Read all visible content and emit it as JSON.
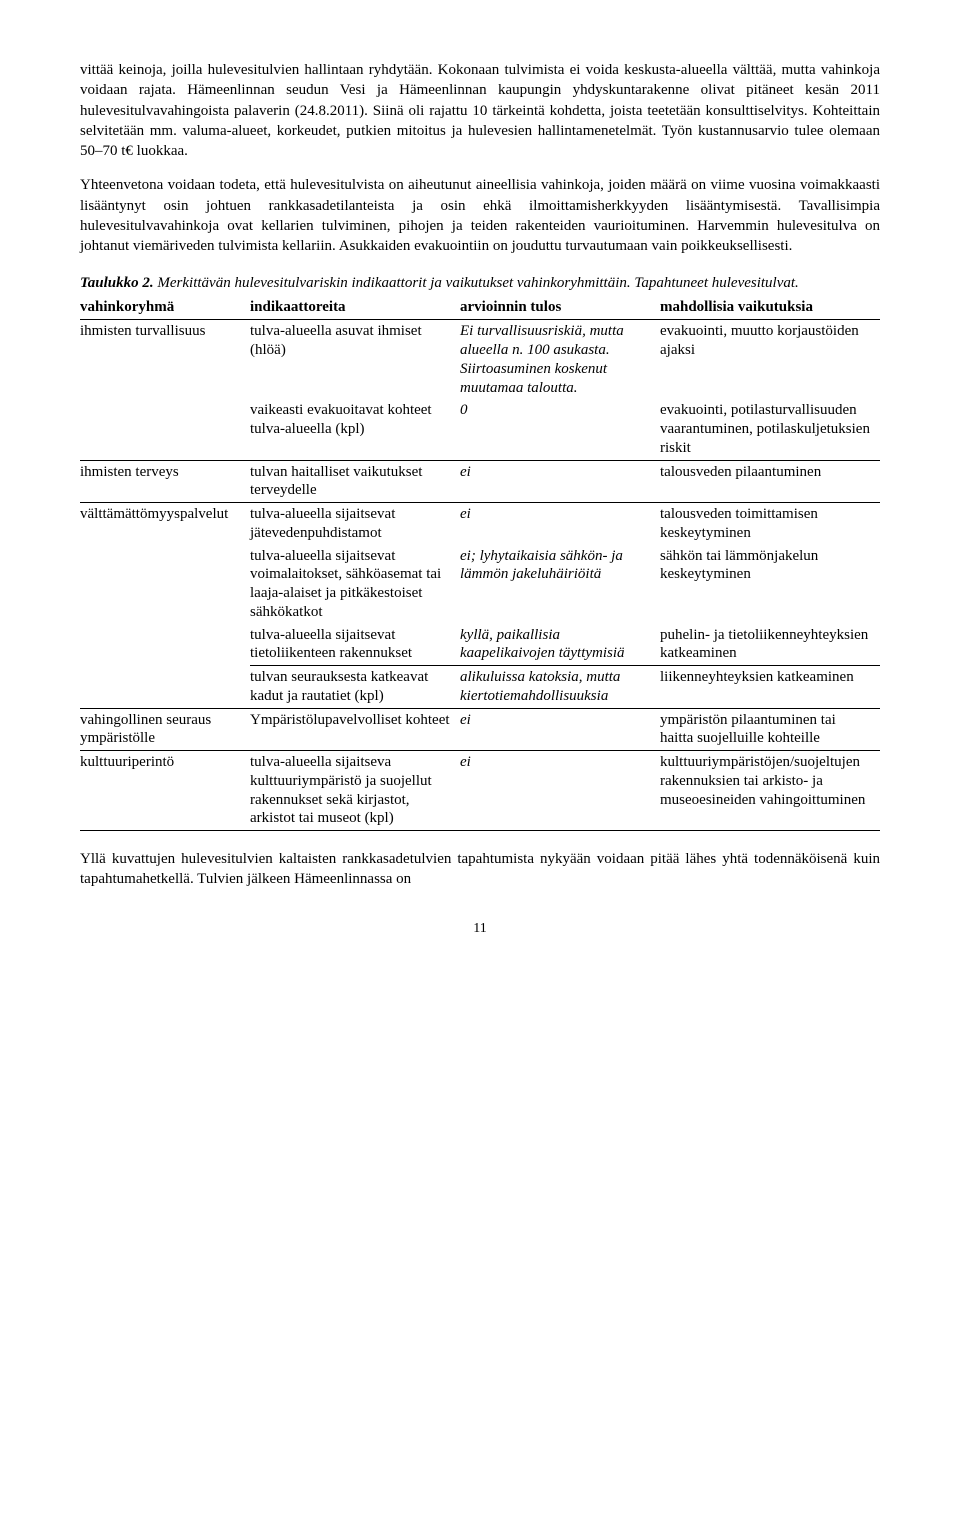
{
  "paragraphs": {
    "p1": "vittää keinoja, joilla hulevesitulvien hallintaan ryhdytään. Kokonaan tulvimista ei voida keskusta-alueella välttää, mutta vahinkoja voidaan rajata. Hämeenlinnan seudun Vesi ja Hämeenlinnan kaupungin yhdyskuntarakenne olivat pitäneet kesän 2011 hulevesitulvavahingoista palaverin (24.8.2011). Siinä oli rajattu 10 tärkeintä kohdetta, joista teetetään konsulttiselvitys. Kohteittain selvitetään mm. valuma-alueet, korkeudet, putkien mitoitus ja hulevesien hallintamenetelmät. Työn kustannusarvio tulee olemaan 50–70 t€ luokkaa.",
    "p2": "Yhteenvetona voidaan todeta, että hulevesitulvista on aiheutunut aineellisia vahinkoja, joiden määrä on viime vuosina voimakkaasti lisääntynyt osin johtuen rankkasadetilanteista ja osin ehkä ilmoittamisherkkyyden lisääntymisestä. Tavallisimpia hulevesitulvavahinkoja ovat kellarien tulviminen, pihojen ja teiden rakenteiden vaurioituminen. Harvemmin hulevesitulva on johtanut viemäriveden tulvimista kellariin. Asukkaiden evakuointiin on jouduttu turvautumaan vain poikkeuksellisesti.",
    "p3": "Yllä kuvatuttujen hulevesitulvien kaltaisten rankkasadetuIvien tapahtumista nykyään voidaan pitää lähes yhtä todennäköisenä kuin tapahtumahetkellä. Tulvien jälkeen Hämeenlinnassa on"
  },
  "p3_real": "Yllä kuvattujen hulevesitulvien kaltaisten rankkasadetulvien tapahtumista nykyään voidaan pitää lähes yhtä todennäköisenä kuin tapahtumahetkellä. Tulvien jälkeen Hämeenlinnassa on",
  "caption": {
    "bold": "Taulukko 2.",
    "rest": "Merkittävän hulevesitulvariskin indikaattorit ja vaikutukset vahinkoryhmittäin. Tapahtuneet hulevesitulvat."
  },
  "table": {
    "headers": [
      "vahinkoryhmä",
      "indikaattoreita",
      "arvioinnin tulos",
      "mahdollisia vaikutuksia"
    ],
    "rows": [
      {
        "c1": "ihmisten turvallisuus",
        "c2": "tulva-alueella asuvat ihmiset (hlöä)",
        "c3": "Ei turvallisuusriskiä, mutta alueella n. 100 asukasta. Siirtoasuminen koskenut muutamaa taloutta.",
        "c4": "evakuointi,\nmuutto korjaustöiden ajaksi"
      },
      {
        "c1": "",
        "c2": "vaikeasti evakuoitavat kohteet tulva-alueella (kpl)",
        "c3": "0",
        "c4": "evakuointi, potilasturvallisuuden vaarantuminen, potilaskuljetuksien riskit"
      },
      {
        "c1": "ihmisten terveys",
        "c2": "tulvan haitalliset vaikutukset terveydelle",
        "c3": "ei",
        "c4": "talousveden pilaantuminen"
      },
      {
        "c1": "välttämättömyyspalvelut",
        "c2": "tulva-alueella sijaitsevat jätevedenpuhdistamot",
        "c3": "ei",
        "c4": "talousveden toimittamisen keskeytyminen"
      },
      {
        "c1": "",
        "c2": "tulva-alueella sijaitsevat voimalaitokset, sähköasemat tai laaja-alaiset ja pitkäkestoiset sähkökatkot",
        "c3": "ei; lyhytaikaisia sähkön- ja lämmön jakeluhäiriöitä",
        "c4": "sähkön tai lämmönjakelun keskeytyminen"
      },
      {
        "c1": "",
        "c2": "tulva-alueella sijaitsevat tietoliikenteen rakennukset",
        "c3": "kyllä, paikallisia kaapelikaivojen täyttymisiä",
        "c4": "puhelin- ja tietoliikenneyhteyksien katkeaminen"
      },
      {
        "c1": "",
        "c2": "tulvan seurauksesta katkeavat kadut ja rautatiet (kpl)",
        "c3": "alikuluissa katoksia, mutta kiertotiemahdollisuuksia",
        "c4": "liikenneyhteyksien katkeaminen"
      },
      {
        "c1": "vahingollinen seuraus ympäristölle",
        "c2": "Ympäristölupavelvolliset kohteet",
        "c3": "ei",
        "c4": "ympäristön pilaantuminen tai haitta suojelluille kohteille"
      },
      {
        "c1": "kulttuuriperintö",
        "c2": "tulva-alueella sijaitseva kulttuuriympäristö ja suojellut rakennukset sekä kirjastot, arkistot tai museot (kpl)",
        "c3": "ei",
        "c4": "kulttuuriympäristöjen/suojeltujen rakennuksien tai arkisto- ja museoesineiden vahingoittuminen"
      }
    ]
  },
  "page_number": "11"
}
